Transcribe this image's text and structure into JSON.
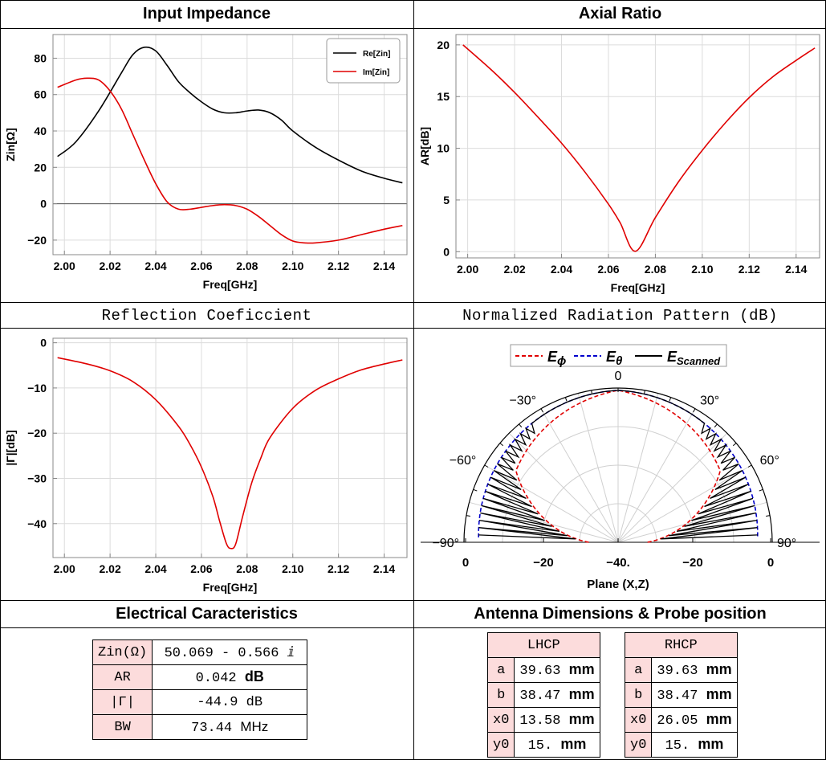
{
  "panels": {
    "impedance_title": "Input Impedance",
    "axial_title": "Axial Ratio",
    "reflection_title": "Reflection Coeficcient",
    "pattern_title": "Normalized Radiation Pattern (dB)",
    "electrical_title": "Electrical Caracteristics",
    "dimensions_title": "Antenna Dimensions & Probe position"
  },
  "chart_data": [
    {
      "type": "line",
      "title": "Input Impedance",
      "xlabel": "Freq[GHz]",
      "ylabel": "Zin[Ω]",
      "xlim": [
        1.995,
        2.15
      ],
      "ylim": [
        -28,
        93
      ],
      "xticks": [
        2.0,
        2.02,
        2.04,
        2.06,
        2.08,
        2.1,
        2.12,
        2.14
      ],
      "yticks": [
        -20,
        0,
        20,
        40,
        60,
        80
      ],
      "grid": true,
      "legend": "top-right",
      "colors": [
        "#000000",
        "#e00000"
      ],
      "series": [
        {
          "name": "Re[Zin]",
          "x": [
            1.997,
            2.005,
            2.015,
            2.025,
            2.03,
            2.035,
            2.04,
            2.045,
            2.05,
            2.055,
            2.06,
            2.065,
            2.07,
            2.075,
            2.08,
            2.085,
            2.09,
            2.095,
            2.1,
            2.11,
            2.12,
            2.13,
            2.14,
            2.148
          ],
          "values": [
            26,
            34,
            51,
            72,
            82,
            86,
            84,
            76,
            67,
            61,
            56,
            52,
            50,
            50,
            51,
            51.5,
            50,
            46,
            40,
            31,
            24,
            18,
            14,
            11.5
          ]
        },
        {
          "name": "Im[Zin]",
          "x": [
            1.997,
            2.005,
            2.01,
            2.015,
            2.02,
            2.025,
            2.03,
            2.035,
            2.04,
            2.045,
            2.05,
            2.055,
            2.06,
            2.065,
            2.07,
            2.075,
            2.08,
            2.085,
            2.09,
            2.095,
            2.1,
            2.105,
            2.11,
            2.12,
            2.13,
            2.14,
            2.148
          ],
          "values": [
            64,
            68,
            69,
            68,
            62,
            52,
            38,
            24,
            11,
            1,
            -3,
            -3,
            -2,
            -1,
            -0.5,
            -1,
            -3,
            -7,
            -12,
            -17,
            -20.5,
            -21.5,
            -21.5,
            -20,
            -17,
            -14,
            -12
          ]
        }
      ]
    },
    {
      "type": "line",
      "title": "Axial Ratio",
      "xlabel": "Freq[GHz]",
      "ylabel": "AR[dB]",
      "xlim": [
        1.995,
        2.15
      ],
      "ylim": [
        -0.6,
        21
      ],
      "xticks": [
        2.0,
        2.02,
        2.04,
        2.06,
        2.08,
        2.1,
        2.12,
        2.14
      ],
      "yticks": [
        0,
        5,
        10,
        15,
        20
      ],
      "grid": true,
      "colors": [
        "#e00000"
      ],
      "series": [
        {
          "x": [
            1.998,
            2.01,
            2.02,
            2.03,
            2.04,
            2.05,
            2.06,
            2.065,
            2.0715,
            2.08,
            2.09,
            2.1,
            2.11,
            2.12,
            2.13,
            2.14,
            2.148
          ],
          "values": [
            20,
            17.6,
            15.4,
            13.0,
            10.5,
            7.7,
            4.6,
            2.8,
            0.04,
            3.3,
            6.8,
            9.8,
            12.5,
            14.9,
            16.9,
            18.5,
            19.7
          ]
        }
      ]
    },
    {
      "type": "line",
      "title": "Reflection Coeficcient",
      "xlabel": "Freq[GHz]",
      "ylabel": "|Γ|[dB]",
      "xlim": [
        1.995,
        2.15
      ],
      "ylim": [
        -47.5,
        1
      ],
      "xticks": [
        2.0,
        2.02,
        2.04,
        2.06,
        2.08,
        2.1,
        2.12,
        2.14
      ],
      "yticks": [
        -40,
        -30,
        -20,
        -10,
        0
      ],
      "grid": true,
      "colors": [
        "#e00000"
      ],
      "series": [
        {
          "x": [
            1.997,
            2.01,
            2.02,
            2.03,
            2.04,
            2.05,
            2.055,
            2.06,
            2.065,
            2.068,
            2.071,
            2.073,
            2.075,
            2.078,
            2.082,
            2.086,
            2.09,
            2.1,
            2.11,
            2.12,
            2.13,
            2.14,
            2.148
          ],
          "values": [
            -3.3,
            -4.7,
            -6.2,
            -8.6,
            -12.6,
            -18.5,
            -22.5,
            -27.5,
            -34,
            -39.5,
            -44.5,
            -45.5,
            -44.5,
            -38.5,
            -31,
            -25.5,
            -21,
            -14.5,
            -10.5,
            -8,
            -6,
            -4.7,
            -3.8
          ]
        }
      ]
    },
    {
      "type": "line",
      "title": "Normalized Radiation Pattern (dB)",
      "xlabel": "Plane (X,Z)",
      "rlim": [
        -40,
        0
      ],
      "angle_ticks": [
        "-90°",
        "-60°",
        "-30°",
        "0",
        "30°",
        "60°",
        "90°"
      ],
      "x_tick_labels": [
        "0",
        "-20",
        "-40.",
        "-20",
        "0"
      ],
      "legend": "top",
      "colors": [
        "#e00000",
        "#0000cc",
        "#000000"
      ],
      "series": [
        {
          "name": "Eϕ",
          "style": "dashed"
        },
        {
          "name": "Eθ",
          "style": "dashed"
        },
        {
          "name": "EScanned",
          "style": "solid"
        }
      ]
    }
  ],
  "electrical": [
    {
      "key": "Zin(Ω)",
      "value": "50.069 - 0.566 ⅈ",
      "unit": ""
    },
    {
      "key": "AR",
      "value": "0.042",
      "unit": "dB"
    },
    {
      "key": "|Γ|",
      "value": "-44.9",
      "unit": "dB"
    },
    {
      "key": "BW",
      "value": "73.44",
      "unit": "MHz"
    }
  ],
  "lhcp": {
    "header": "LHCP",
    "rows": [
      {
        "key": "a",
        "value": "39.63",
        "unit": "mm"
      },
      {
        "key": "b",
        "value": "38.47",
        "unit": "mm"
      },
      {
        "key": "x0",
        "value": "13.58",
        "unit": "mm"
      },
      {
        "key": "y0",
        "value": "15.",
        "unit": "mm"
      }
    ]
  },
  "rhcp": {
    "header": "RHCP",
    "rows": [
      {
        "key": "a",
        "value": "39.63",
        "unit": "mm"
      },
      {
        "key": "b",
        "value": "38.47",
        "unit": "mm"
      },
      {
        "key": "x0",
        "value": "26.05",
        "unit": "mm"
      },
      {
        "key": "y0",
        "value": "15.",
        "unit": "mm"
      }
    ]
  }
}
